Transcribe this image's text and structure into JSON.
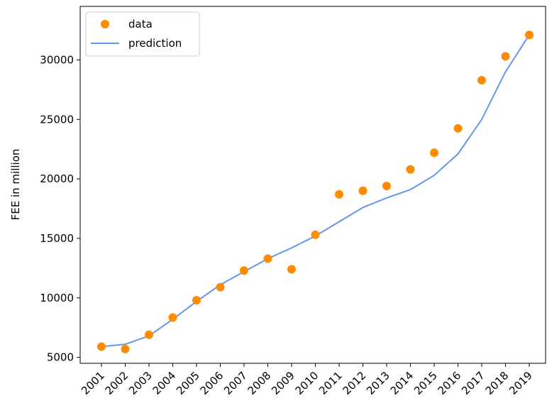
{
  "chart_data": {
    "type": "scatter",
    "title": "",
    "xlabel": "",
    "ylabel": "FEE in million",
    "x": [
      "2001",
      "2002",
      "2003",
      "2004",
      "2005",
      "2006",
      "2007",
      "2008",
      "2009",
      "2010",
      "2011",
      "2012",
      "2013",
      "2014",
      "2015",
      "2016",
      "2017",
      "2018",
      "2019"
    ],
    "ylim": [
      4500,
      34500
    ],
    "yticks": [
      5000,
      10000,
      15000,
      20000,
      25000,
      30000
    ],
    "series": [
      {
        "name": "data",
        "kind": "scatter",
        "color": "#ff8c00",
        "values": [
          5900,
          5700,
          6900,
          8350,
          9800,
          10900,
          12300,
          13300,
          12400,
          15300,
          18700,
          19000,
          19400,
          20800,
          22200,
          24250,
          28300,
          30300,
          32100
        ]
      },
      {
        "name": "prediction",
        "kind": "line",
        "color": "#6495ed",
        "values": [
          5900,
          6100,
          6800,
          8200,
          9700,
          11100,
          12200,
          13300,
          14200,
          15200,
          16400,
          17600,
          18400,
          19100,
          20300,
          22100,
          25000,
          29000,
          32100
        ]
      }
    ],
    "legend": {
      "position": "top-left"
    },
    "grid": false
  }
}
